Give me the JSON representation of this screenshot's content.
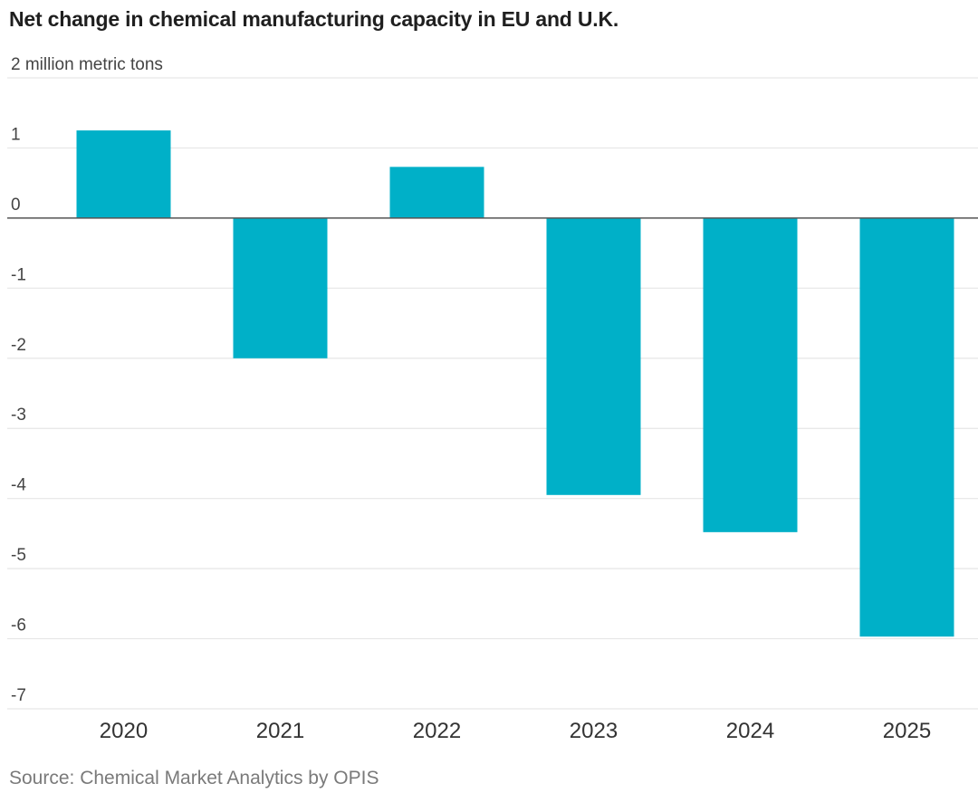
{
  "chart_data": {
    "type": "bar",
    "title": "Net change in chemical manufacturing capacity in EU and U.K.",
    "unit_label": "million metric tons",
    "categories": [
      "2020",
      "2021",
      "2022",
      "2023",
      "2024",
      "2025"
    ],
    "values": [
      1.25,
      -2.0,
      0.73,
      -3.95,
      -4.48,
      -5.97
    ],
    "ylim": [
      -7,
      2
    ],
    "yticks": [
      2,
      1,
      0,
      -1,
      -2,
      -3,
      -4,
      -5,
      -6,
      -7
    ],
    "ytick_labels": [
      "2 million metric tons",
      "1",
      "0",
      "-1",
      "-2",
      "-3",
      "-4",
      "-5",
      "-6",
      "-7"
    ],
    "xlabel": "",
    "ylabel": "",
    "grid": true,
    "bar_color": "#00b0c8",
    "source": "Source: Chemical Market Analytics by OPIS"
  }
}
